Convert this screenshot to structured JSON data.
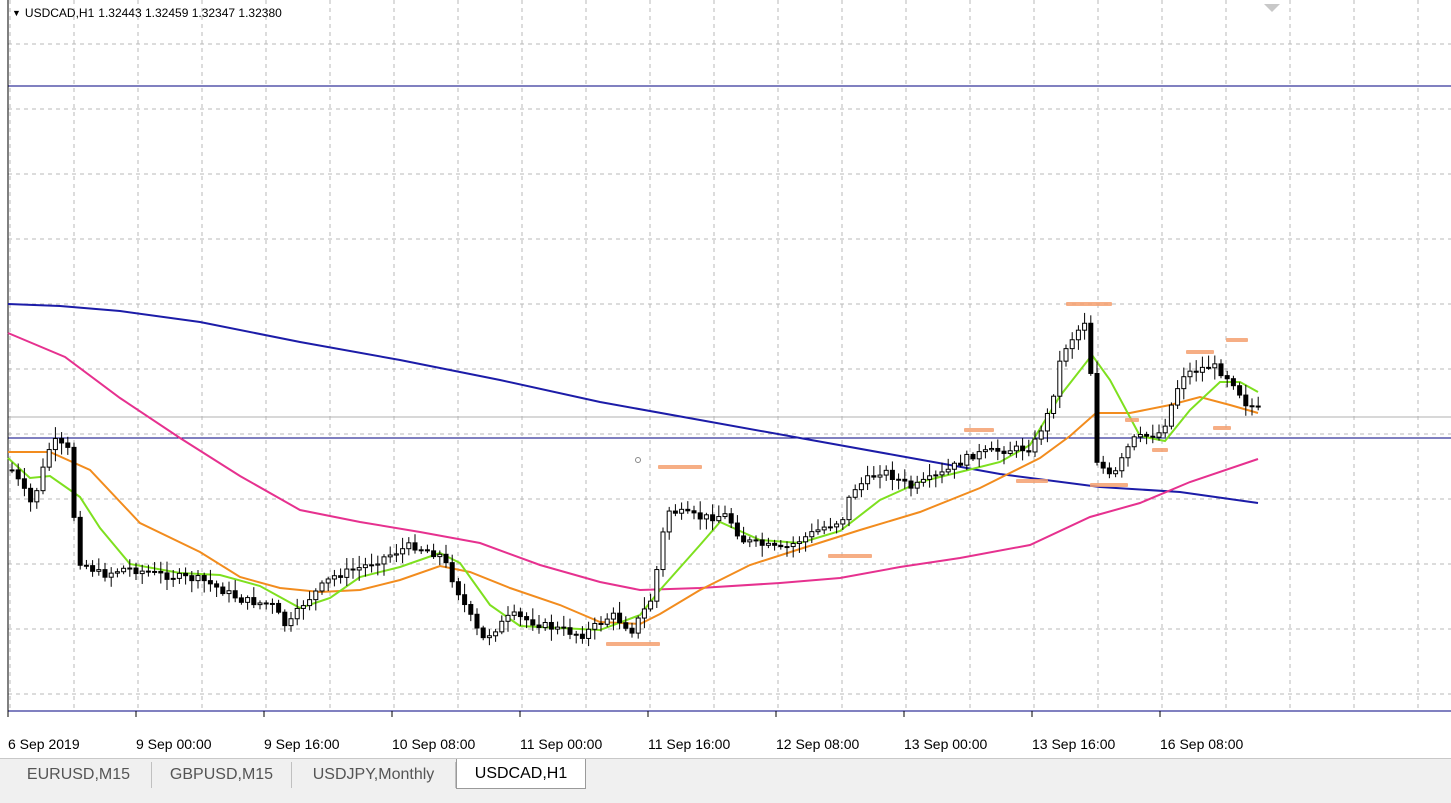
{
  "header": {
    "dropdown_icon": "triangle-down-icon",
    "symbol": "USDCAD,H1",
    "ohlc": "1.32443 1.32459 1.32347 1.32380"
  },
  "x_axis": {
    "labels": [
      "6 Sep 2019",
      "9 Sep 00:00",
      "9 Sep 16:00",
      "10 Sep 08:00",
      "11 Sep 00:00",
      "11 Sep 16:00",
      "12 Sep 08:00",
      "13 Sep 00:00",
      "13 Sep 16:00",
      "16 Sep 08:00"
    ]
  },
  "tabs": [
    {
      "label": "EURUSD,M15",
      "active": false
    },
    {
      "label": "GBPUSD,M15",
      "active": false
    },
    {
      "label": "USDJPY,Monthly",
      "active": false
    },
    {
      "label": "USDCAD,H1",
      "active": true
    }
  ],
  "colors": {
    "grid": "#b8b8b8",
    "hline": "#000080",
    "ma_blue": "#1c1ca8",
    "ma_pink": "#e6318f",
    "ma_orange": "#f28c1e",
    "ma_green": "#7ee01f",
    "label_orange": "#f5a070"
  }
}
